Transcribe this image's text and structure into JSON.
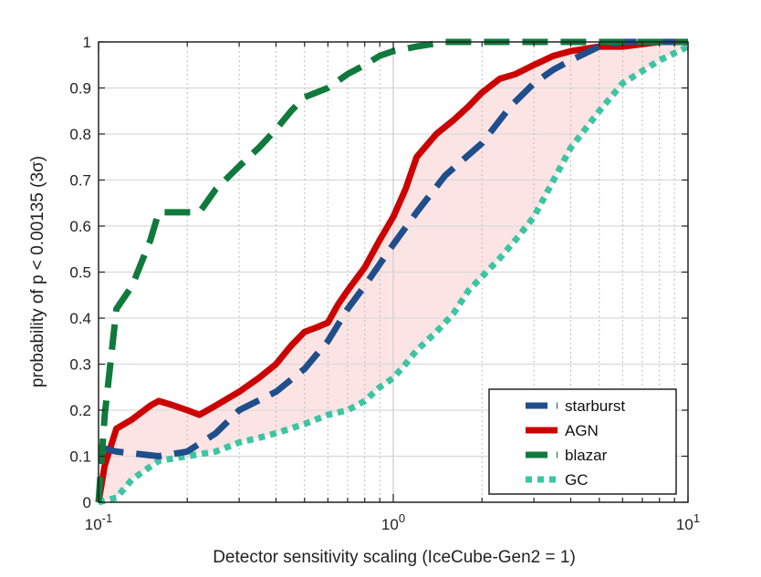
{
  "chart_data": {
    "type": "line",
    "xlabel": "Detector sensitivity scaling (IceCube-Gen2 = 1)",
    "ylabel": "probability of p < 0.00135  (3σ)",
    "xscale": "log",
    "xlim": [
      0.1,
      10
    ],
    "ylim": [
      0,
      1
    ],
    "grid": "on",
    "legend_position": "bottom-right",
    "y_ticks": [
      "0",
      "0.1",
      "0.2",
      "0.3",
      "0.4",
      "0.5",
      "0.6",
      "0.7",
      "0.8",
      "0.9",
      "1"
    ],
    "x_ticks": [
      {
        "base": "10",
        "exp": "-1"
      },
      {
        "base": "10",
        "exp": "0"
      },
      {
        "base": "10",
        "exp": "1"
      }
    ],
    "band": {
      "fill": "#fde4e4",
      "lower_series": "GC",
      "upper_series": "AGN"
    },
    "series": [
      {
        "name": "starburst",
        "color": "#1f4e8c",
        "style": "dashed",
        "x": [
          0.1,
          0.115,
          0.16,
          0.2,
          0.25,
          0.3,
          0.4,
          0.5,
          0.6,
          0.7,
          0.8,
          1.0,
          1.2,
          1.5,
          2.0,
          2.5,
          3.0,
          3.5,
          4.0,
          5.0,
          6.0,
          10.0
        ],
        "y": [
          0.12,
          0.11,
          0.1,
          0.11,
          0.15,
          0.2,
          0.24,
          0.29,
          0.35,
          0.42,
          0.47,
          0.56,
          0.63,
          0.71,
          0.78,
          0.86,
          0.91,
          0.94,
          0.96,
          0.99,
          1.0,
          1.0
        ]
      },
      {
        "name": "AGN",
        "color": "#cc0000",
        "style": "solid",
        "x": [
          0.1,
          0.105,
          0.115,
          0.13,
          0.15,
          0.16,
          0.18,
          0.2,
          0.22,
          0.25,
          0.3,
          0.35,
          0.4,
          0.45,
          0.5,
          0.55,
          0.6,
          0.65,
          0.7,
          0.8,
          0.9,
          1.0,
          1.1,
          1.2,
          1.4,
          1.6,
          1.8,
          2.0,
          2.3,
          2.6,
          3.0,
          3.5,
          4.0,
          5.0,
          6.0,
          8.0,
          10.0
        ],
        "y": [
          0.0,
          0.08,
          0.16,
          0.18,
          0.21,
          0.22,
          0.21,
          0.2,
          0.19,
          0.21,
          0.24,
          0.27,
          0.3,
          0.34,
          0.37,
          0.38,
          0.39,
          0.43,
          0.46,
          0.51,
          0.57,
          0.62,
          0.68,
          0.75,
          0.8,
          0.83,
          0.86,
          0.89,
          0.92,
          0.93,
          0.95,
          0.97,
          0.98,
          0.99,
          0.99,
          1.0,
          1.0
        ]
      },
      {
        "name": "blazar",
        "color": "#0f7a3c",
        "style": "dashed",
        "x": [
          0.1,
          0.105,
          0.115,
          0.13,
          0.15,
          0.16,
          0.2,
          0.22,
          0.25,
          0.3,
          0.35,
          0.4,
          0.45,
          0.5,
          0.6,
          0.7,
          0.8,
          0.9,
          1.0,
          1.2,
          1.5,
          2.0,
          3.0,
          5.0,
          10.0
        ],
        "y": [
          0.0,
          0.19,
          0.42,
          0.47,
          0.57,
          0.63,
          0.63,
          0.63,
          0.68,
          0.73,
          0.77,
          0.81,
          0.85,
          0.88,
          0.9,
          0.93,
          0.95,
          0.97,
          0.98,
          0.99,
          1.0,
          1.0,
          1.0,
          1.0,
          1.0
        ]
      },
      {
        "name": "GC",
        "color": "#3cc5a3",
        "style": "dotted",
        "x": [
          0.1,
          0.115,
          0.13,
          0.16,
          0.2,
          0.25,
          0.3,
          0.35,
          0.4,
          0.5,
          0.6,
          0.7,
          0.8,
          0.9,
          1.0,
          1.1,
          1.2,
          1.4,
          1.6,
          1.8,
          2.0,
          2.3,
          2.6,
          3.0,
          3.5,
          4.0,
          5.0,
          6.0,
          8.0,
          10.0
        ],
        "y": [
          0.0,
          0.01,
          0.05,
          0.09,
          0.1,
          0.11,
          0.13,
          0.14,
          0.15,
          0.17,
          0.19,
          0.2,
          0.22,
          0.25,
          0.27,
          0.3,
          0.33,
          0.37,
          0.41,
          0.46,
          0.49,
          0.53,
          0.57,
          0.62,
          0.7,
          0.77,
          0.85,
          0.91,
          0.96,
          0.99
        ]
      }
    ]
  }
}
